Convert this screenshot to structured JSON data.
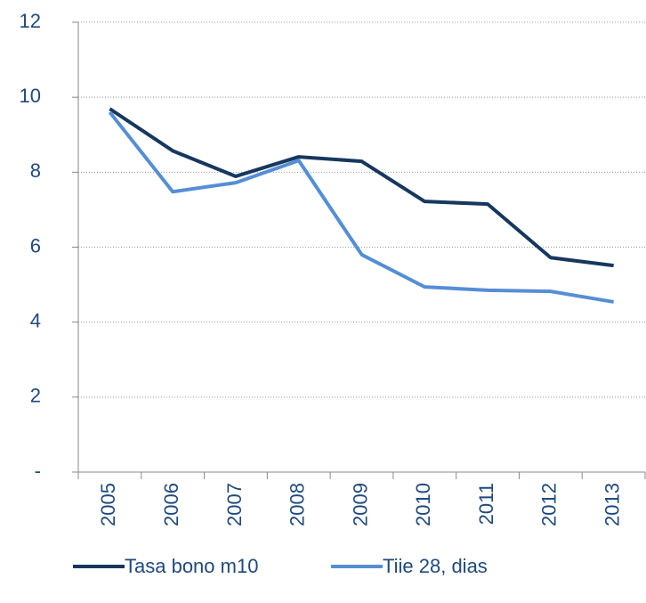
{
  "chart_data": {
    "type": "line",
    "categories": [
      "2005",
      "2006",
      "2007",
      "2008",
      "2009",
      "2010",
      "2011",
      "2012",
      "2013"
    ],
    "series": [
      {
        "name": "Tasa bono m10",
        "color": "#17375e",
        "values": [
          9.69,
          8.57,
          7.89,
          8.41,
          8.29,
          7.22,
          7.15,
          5.72,
          5.51
        ]
      },
      {
        "name": "Tiie 28, dias",
        "color": "#558ed5",
        "values": [
          9.6,
          7.48,
          7.72,
          8.31,
          5.8,
          4.94,
          4.85,
          4.82,
          4.54
        ]
      }
    ],
    "ylim": [
      0,
      12
    ],
    "yticks": [
      {
        "value": 0,
        "label": "-"
      },
      2,
      4,
      6,
      8,
      10,
      12
    ],
    "grid": true,
    "legend": "bottom"
  }
}
